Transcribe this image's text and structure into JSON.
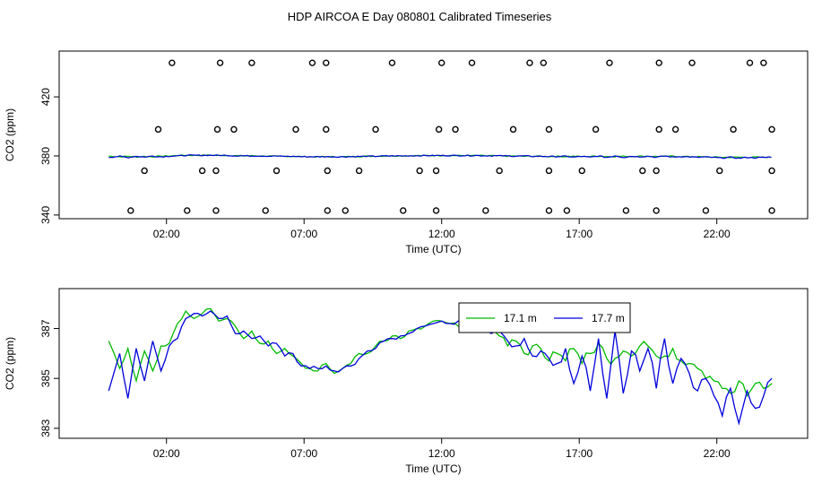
{
  "title": "HDP AIRCOA E  Day 080801  Calibrated Timeseries",
  "colors": {
    "green": "#00bb00",
    "blue": "#0000dd",
    "axis": "#000000"
  },
  "chart_data": [
    {
      "type": "scatter+line",
      "title": "",
      "xlabel": "Time (UTC)",
      "ylabel": "CO2 (ppm)",
      "xlim": [
        -1.9,
        25.3
      ],
      "ylim": [
        337.5,
        451
      ],
      "x_unit": "hours UTC",
      "x_ticks": [
        2,
        7,
        12,
        17,
        22
      ],
      "x_tick_labels": [
        "02:00",
        "07:00",
        "12:00",
        "17:00",
        "22:00"
      ],
      "y_ticks": [
        340,
        380,
        420
      ],
      "y_tick_labels": [
        "340",
        "380",
        "420"
      ],
      "calibration_points": {
        "marker": "open-circle",
        "levels": [
          {
            "y": 343,
            "x": [
              0.7,
              2.75,
              3.8,
              5.6,
              7.85,
              8.5,
              10.6,
              11.8,
              13.6,
              15.9,
              16.55,
              18.7,
              19.8,
              21.6,
              24.0
            ]
          },
          {
            "y": 370,
            "x": [
              1.2,
              3.3,
              3.8,
              6.0,
              7.85,
              9.0,
              11.2,
              11.8,
              14.1,
              15.9,
              17.1,
              19.3,
              19.8,
              22.1,
              24.0
            ]
          },
          {
            "y": 398,
            "x": [
              1.7,
              3.85,
              4.45,
              6.7,
              7.8,
              9.6,
              11.9,
              12.5,
              14.6,
              15.9,
              17.6,
              19.9,
              20.5,
              22.6,
              24.0
            ]
          },
          {
            "y": 443,
            "x": [
              2.2,
              3.95,
              5.1,
              7.3,
              7.8,
              10.2,
              12.0,
              13.1,
              15.2,
              15.7,
              18.1,
              19.9,
              21.1,
              23.2,
              23.7
            ]
          }
        ]
      },
      "series": [
        {
          "name": "",
          "color": "green",
          "ambient": true
        },
        {
          "name": "",
          "color": "blue",
          "ambient": true
        }
      ]
    },
    {
      "type": "line",
      "title": "",
      "xlabel": "Time (UTC)",
      "ylabel": "CO2 (ppm)",
      "xlim": [
        -1.9,
        25.3
      ],
      "ylim": [
        382.6,
        388.6
      ],
      "x_unit": "hours UTC",
      "x_ticks": [
        2,
        7,
        12,
        17,
        22
      ],
      "x_tick_labels": [
        "02:00",
        "07:00",
        "12:00",
        "17:00",
        "22:00"
      ],
      "y_ticks": [
        383,
        385,
        387
      ],
      "y_tick_labels": [
        "383",
        "385",
        "387"
      ],
      "legend": {
        "placement": "top-center"
      },
      "series": [
        {
          "name": "17.1 m",
          "color": "green",
          "x": [
            -0.1,
            0.3,
            0.6,
            0.9,
            1.2,
            1.5,
            1.8,
            2.1,
            2.4,
            2.7,
            3.0,
            3.3,
            3.6,
            3.9,
            4.2,
            4.5,
            4.8,
            5.1,
            5.4,
            5.7,
            6.0,
            6.3,
            6.6,
            6.9,
            7.2,
            7.5,
            7.8,
            8.1,
            8.4,
            8.7,
            9.0,
            9.3,
            9.6,
            9.9,
            10.2,
            10.5,
            10.8,
            11.1,
            11.4,
            11.7,
            12.0,
            12.3,
            12.6,
            12.9,
            13.2,
            13.5,
            13.8,
            14.1,
            14.4,
            14.7,
            15.0,
            15.3,
            15.6,
            15.9,
            16.2,
            16.5,
            16.8,
            17.1,
            17.4,
            17.7,
            18.0,
            18.3,
            18.6,
            18.9,
            19.2,
            19.5,
            19.8,
            20.1,
            20.4,
            20.7,
            21.0,
            21.3,
            21.6,
            21.9,
            22.2,
            22.5,
            22.8,
            23.1,
            23.4,
            23.7,
            24.0
          ],
          "y": [
            386.5,
            385.4,
            386.2,
            384.9,
            386.1,
            385.3,
            386.3,
            386.4,
            387.2,
            387.7,
            387.4,
            387.6,
            387.8,
            387.3,
            387.4,
            387.1,
            386.6,
            386.9,
            386.4,
            386.5,
            386.0,
            386.2,
            385.9,
            385.6,
            385.4,
            385.3,
            385.6,
            385.2,
            385.4,
            385.6,
            386.0,
            386.0,
            386.3,
            386.5,
            386.7,
            386.6,
            386.9,
            387.0,
            387.1,
            387.3,
            387.3,
            387.2,
            387.1,
            387.3,
            387.2,
            387.1,
            386.9,
            386.7,
            386.3,
            386.5,
            386.0,
            386.3,
            386.2,
            385.7,
            386.0,
            385.7,
            386.2,
            385.6,
            386.0,
            386.4,
            385.8,
            385.8,
            386.1,
            385.9,
            386.3,
            386.3,
            385.9,
            385.9,
            386.2,
            385.7,
            385.6,
            385.4,
            385.0,
            384.9,
            384.6,
            384.4,
            384.9,
            384.3,
            384.8,
            384.6,
            384.8
          ]
        },
        {
          "name": "17.7 m",
          "color": "blue",
          "x": [
            -0.1,
            0.3,
            0.6,
            0.9,
            1.2,
            1.5,
            1.8,
            2.1,
            2.4,
            2.7,
            3.0,
            3.3,
            3.6,
            3.9,
            4.2,
            4.5,
            4.8,
            5.1,
            5.4,
            5.7,
            6.0,
            6.3,
            6.6,
            6.9,
            7.2,
            7.5,
            7.8,
            8.1,
            8.4,
            8.7,
            9.0,
            9.3,
            9.6,
            9.9,
            10.2,
            10.5,
            10.8,
            11.1,
            11.4,
            11.7,
            12.0,
            12.3,
            12.6,
            12.9,
            13.2,
            13.5,
            13.8,
            14.1,
            14.4,
            14.7,
            15.0,
            15.3,
            15.6,
            15.9,
            16.2,
            16.5,
            16.8,
            17.1,
            17.4,
            17.7,
            18.0,
            18.3,
            18.6,
            18.9,
            19.2,
            19.5,
            19.8,
            20.1,
            20.4,
            20.7,
            21.0,
            21.3,
            21.6,
            21.9,
            22.2,
            22.5,
            22.8,
            23.1,
            23.4,
            23.7,
            24.0
          ],
          "y": [
            384.5,
            386.0,
            384.2,
            386.2,
            384.9,
            386.5,
            385.3,
            386.3,
            386.6,
            387.4,
            387.6,
            387.5,
            387.7,
            387.4,
            387.5,
            386.8,
            386.9,
            386.6,
            386.7,
            386.3,
            386.4,
            385.9,
            386.0,
            385.5,
            385.4,
            385.4,
            385.5,
            385.3,
            385.4,
            385.5,
            385.8,
            386.1,
            386.2,
            386.5,
            386.6,
            386.7,
            386.8,
            387.0,
            387.1,
            387.2,
            387.3,
            387.2,
            387.3,
            387.1,
            387.3,
            387.0,
            386.8,
            386.9,
            386.5,
            386.3,
            386.6,
            385.9,
            386.1,
            385.8,
            385.6,
            386.2,
            384.8,
            385.9,
            384.5,
            386.6,
            384.2,
            386.9,
            384.4,
            386.1,
            385.3,
            386.2,
            384.6,
            386.6,
            384.8,
            385.8,
            385.2,
            384.5,
            385.0,
            384.3,
            383.5,
            384.6,
            383.2,
            384.5,
            383.8,
            384.3,
            385.0
          ]
        }
      ]
    }
  ]
}
